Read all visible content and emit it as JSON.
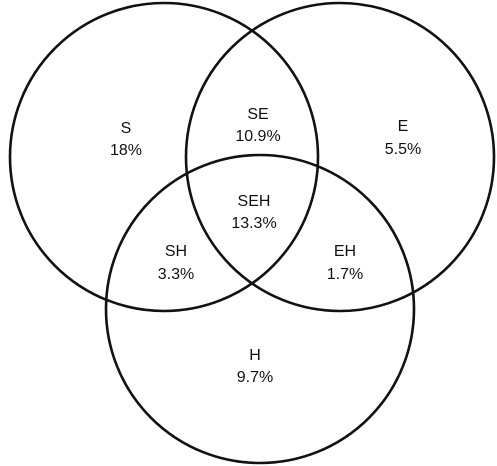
{
  "diagram": {
    "type": "venn",
    "sets": [
      {
        "id": "S",
        "name": "S"
      },
      {
        "id": "E",
        "name": "E"
      },
      {
        "id": "H",
        "name": "H"
      }
    ],
    "regions": [
      {
        "id": "S",
        "name": "S",
        "value": "18%"
      },
      {
        "id": "SE",
        "name": "SE",
        "value": "10.9%"
      },
      {
        "id": "E",
        "name": "E",
        "value": "5.5%"
      },
      {
        "id": "SEH",
        "name": "SEH",
        "value": "13.3%"
      },
      {
        "id": "SH",
        "name": "SH",
        "value": "3.3%"
      },
      {
        "id": "EH",
        "name": "EH",
        "value": "1.7%"
      },
      {
        "id": "H",
        "name": "H",
        "value": "9.7%"
      }
    ],
    "stroke_color": "#111111",
    "background_color": "#ffffff"
  }
}
